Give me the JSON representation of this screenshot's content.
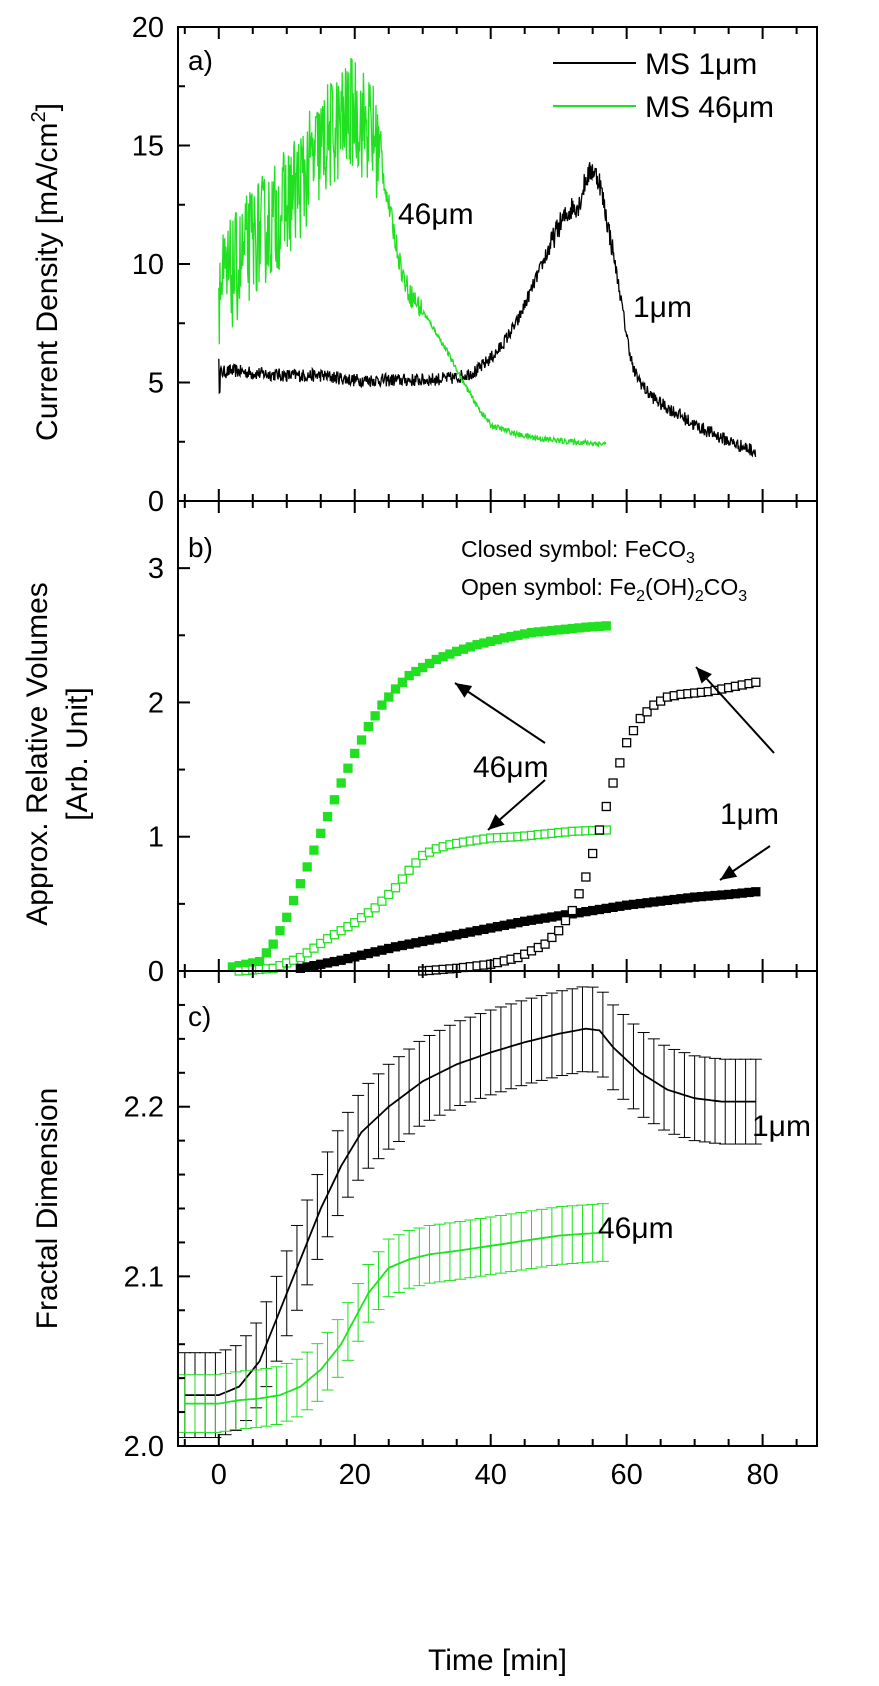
{
  "chart_data": [
    {
      "panel": "a)",
      "type": "line",
      "ylabel": "Current Density [mA/cm²]",
      "ylabel_parts": {
        "main": "Current Density [mA/cm",
        "sup": "2",
        "end": "]"
      },
      "ylim": [
        0,
        20
      ],
      "yticks": [
        0,
        5,
        10,
        15,
        20
      ],
      "legend": {
        "placement": "top-right",
        "entries": [
          "MS 1μm",
          "MS 46μm"
        ]
      },
      "series": [
        {
          "name": "MS 1μm",
          "color": "#000000",
          "noise": 0.35,
          "x": [
            0,
            2,
            5,
            10,
            15,
            20,
            25,
            30,
            35,
            38,
            41,
            44,
            47,
            50,
            52,
            53,
            54,
            55,
            56,
            57,
            58,
            59,
            60,
            61,
            63,
            65,
            68,
            70,
            73,
            76,
            79
          ],
          "y": [
            5.4,
            5.5,
            5.4,
            5.3,
            5.3,
            5.1,
            5.1,
            5.1,
            5.2,
            5.5,
            6.3,
            7.6,
            9.6,
            11.6,
            12.4,
            12.5,
            13.6,
            14.0,
            13.5,
            12.0,
            10.5,
            8.8,
            7.0,
            5.5,
            4.6,
            4.1,
            3.6,
            3.2,
            2.8,
            2.4,
            2.1
          ]
        },
        {
          "name": "MS 46μm",
          "color": "#21e021",
          "noise": 2.4,
          "x": [
            0,
            1,
            3,
            5,
            8,
            10,
            12,
            14,
            16,
            18,
            20,
            21,
            22,
            23,
            24,
            25,
            26,
            27,
            28,
            30,
            32,
            34,
            36,
            38,
            40,
            44,
            48,
            52,
            57
          ],
          "y": [
            9.0,
            9.2,
            10.0,
            11.0,
            11.8,
            12.6,
            13.4,
            14.4,
            15.3,
            15.9,
            16.5,
            16.0,
            15.8,
            15.2,
            14.0,
            12.5,
            11.0,
            9.6,
            8.8,
            8.0,
            7.1,
            6.1,
            5.0,
            4.0,
            3.2,
            2.8,
            2.6,
            2.5,
            2.4
          ]
        }
      ],
      "annotations": [
        "46μm",
        "1μm"
      ]
    },
    {
      "panel": "b)",
      "type": "scatter",
      "ylabel": "Approx. Relative Volumes [Arb. Unit]",
      "ylabel_lines": [
        "Approx. Relative Volumes",
        "[Arb. Unit]"
      ],
      "ylim": [
        0,
        3.5
      ],
      "yticks": [
        0,
        1,
        2,
        3
      ],
      "notes": {
        "closed": {
          "text": "Closed symbol: FeCO",
          "sub": "3"
        },
        "open": {
          "text": "Open symbol: Fe",
          "sub1": "2",
          "mid": "(OH)",
          "sub2": "2",
          "mid2": "CO",
          "sub3": "3"
        }
      },
      "series": [
        {
          "name": "46μm FeCO3 (closed)",
          "color": "#21e021",
          "marker": "square-filled",
          "x": [
            2,
            6,
            8,
            10,
            12,
            14,
            16,
            18,
            20,
            22,
            24,
            26,
            28,
            30,
            32,
            35,
            38,
            42,
            46,
            50,
            54,
            57
          ],
          "y": [
            0.03,
            0.07,
            0.2,
            0.4,
            0.65,
            0.9,
            1.15,
            1.4,
            1.62,
            1.82,
            1.98,
            2.1,
            2.2,
            2.26,
            2.32,
            2.38,
            2.43,
            2.48,
            2.52,
            2.54,
            2.56,
            2.57
          ]
        },
        {
          "name": "46μm Fe2(OH)2CO3 (open)",
          "color": "#21e021",
          "marker": "square-open",
          "x": [
            3,
            8,
            12,
            16,
            20,
            23,
            26,
            28,
            30,
            32,
            34,
            36,
            40,
            44,
            48,
            52,
            57
          ],
          "y": [
            0.0,
            0.02,
            0.1,
            0.24,
            0.36,
            0.47,
            0.62,
            0.75,
            0.86,
            0.91,
            0.94,
            0.96,
            0.99,
            1.0,
            1.02,
            1.04,
            1.05
          ]
        },
        {
          "name": "1μm FeCO3 (closed)",
          "color": "#000000",
          "marker": "square-filled",
          "x": [
            12,
            15,
            18,
            22,
            26,
            30,
            35,
            40,
            45,
            50,
            55,
            60,
            65,
            70,
            75,
            79
          ],
          "y": [
            0.02,
            0.05,
            0.08,
            0.13,
            0.18,
            0.22,
            0.27,
            0.32,
            0.37,
            0.41,
            0.45,
            0.49,
            0.52,
            0.55,
            0.57,
            0.59
          ]
        },
        {
          "name": "1μm Fe2(OH)2CO3 (open)",
          "color": "#000000",
          "marker": "square-open",
          "x": [
            30,
            35,
            40,
            44,
            48,
            50,
            52,
            54,
            56,
            58,
            60,
            62,
            64,
            66,
            68,
            70,
            72,
            74,
            76,
            79
          ],
          "y": [
            0.0,
            0.02,
            0.05,
            0.1,
            0.2,
            0.3,
            0.45,
            0.7,
            1.05,
            1.4,
            1.7,
            1.88,
            1.98,
            2.04,
            2.06,
            2.07,
            2.08,
            2.1,
            2.12,
            2.15
          ]
        }
      ],
      "annotations": [
        "46μm",
        "1μm"
      ]
    },
    {
      "panel": "c)",
      "type": "line",
      "ylabel": "Fractal Dimension",
      "xlabel": "Time [min]",
      "xlim": [
        -6,
        88
      ],
      "xticks": [
        0,
        20,
        40,
        60,
        80
      ],
      "ylim": [
        2.0,
        2.28
      ],
      "yticks": [
        2.0,
        2.1,
        2.2
      ],
      "ytick_labels": [
        "2.0",
        "2.1",
        "2.2"
      ],
      "series": [
        {
          "name": "1μm",
          "color": "#000000",
          "error": 0.025,
          "x": [
            -5,
            0,
            3,
            6,
            9,
            12,
            15,
            18,
            21,
            25,
            30,
            35,
            40,
            45,
            50,
            54,
            56,
            58,
            62,
            66,
            70,
            74,
            79
          ],
          "y": [
            2.03,
            2.03,
            2.035,
            2.05,
            2.08,
            2.11,
            2.14,
            2.165,
            2.185,
            2.2,
            2.215,
            2.225,
            2.232,
            2.238,
            2.243,
            2.246,
            2.245,
            2.235,
            2.22,
            2.21,
            2.205,
            2.203,
            2.203
          ]
        },
        {
          "name": "46μm",
          "color": "#21e021",
          "error": 0.017,
          "x": [
            -5,
            0,
            3,
            6,
            9,
            12,
            15,
            18,
            20,
            22,
            25,
            28,
            31,
            35,
            40,
            45,
            50,
            57
          ],
          "y": [
            2.025,
            2.025,
            2.027,
            2.028,
            2.03,
            2.035,
            2.045,
            2.06,
            2.075,
            2.09,
            2.105,
            2.11,
            2.113,
            2.115,
            2.118,
            2.121,
            2.124,
            2.126
          ]
        }
      ],
      "annotations": [
        "1μm",
        "46μm"
      ]
    }
  ]
}
